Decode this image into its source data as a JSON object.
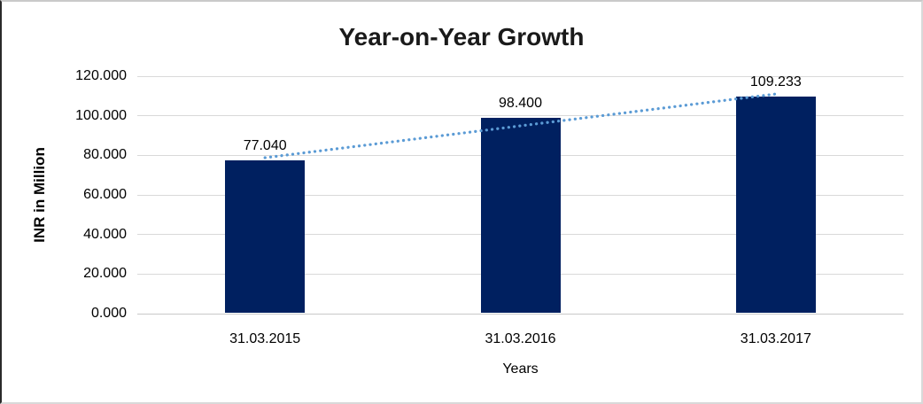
{
  "chart_data": {
    "type": "bar",
    "title": "Year-on-Year Growth",
    "xlabel": "Years",
    "ylabel": "INR in Million",
    "categories": [
      "31.03.2015",
      "31.03.2016",
      "31.03.2017"
    ],
    "values": [
      77040,
      98400,
      109233
    ],
    "value_labels": [
      "77.040",
      "98.400",
      "109.233"
    ],
    "y_ticks": [
      "0.000",
      "20.000",
      "40.000",
      "60.000",
      "80.000",
      "100.000",
      "120.000"
    ],
    "y_tick_values": [
      0,
      20000,
      40000,
      60000,
      80000,
      100000,
      120000
    ],
    "ylim": [
      0,
      120000
    ],
    "grid": true,
    "legend": false,
    "trendline": true,
    "colors": {
      "bar": "#002060",
      "trendline": "#5b9bd5",
      "gridline": "#d9d9d9",
      "text": "#000000",
      "title": "#1a1a1a"
    }
  }
}
